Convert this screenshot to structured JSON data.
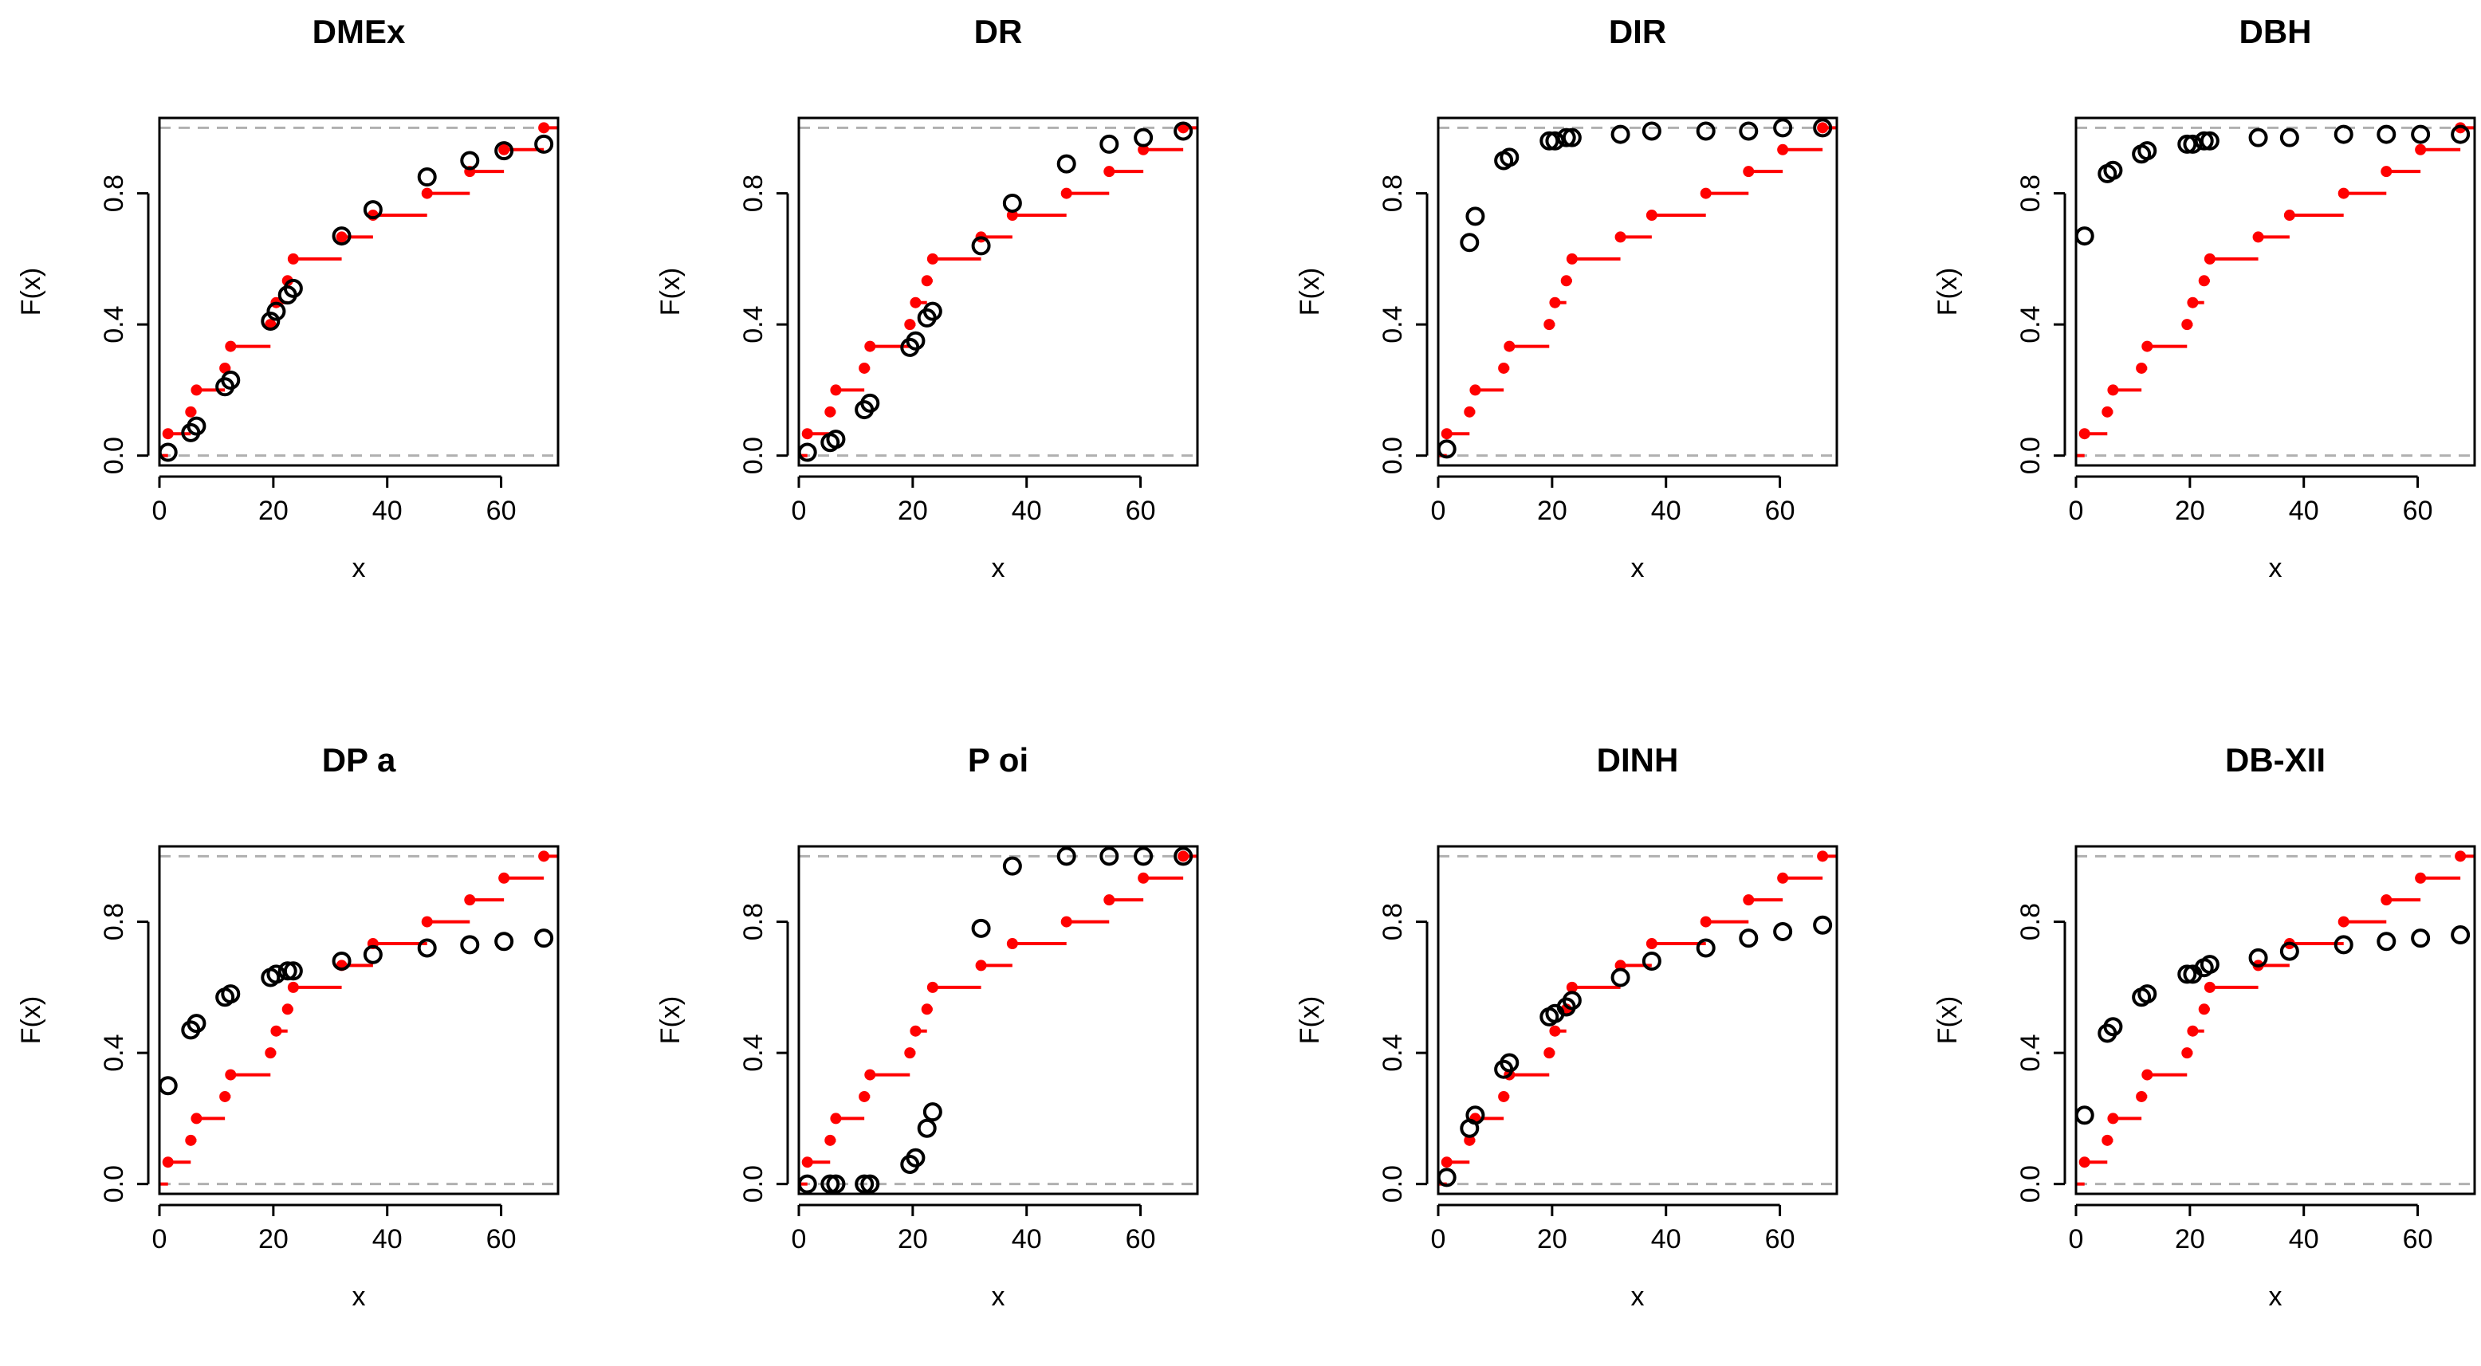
{
  "figure": {
    "panels_title_list": [
      "DMEx",
      "DR",
      "DIR",
      "DBH",
      "DP  a",
      "P oi",
      "DINH",
      "DB-XII"
    ]
  },
  "chart_data": [
    {
      "type": "scatter",
      "title": "DMEx",
      "xlabel": "x",
      "ylabel": "F(x)",
      "xlim": [
        0,
        70
      ],
      "ylim": [
        -0.03,
        1.03
      ],
      "x_ticks": [
        "0",
        "20",
        "40",
        "60"
      ],
      "y_ticks": [
        "0.0",
        "0.4",
        "0.8"
      ],
      "ecdf": {
        "x": [
          1.5,
          5.5,
          6.5,
          11.5,
          12.5,
          19.5,
          20.5,
          22.5,
          23.5,
          32,
          37.5,
          47,
          54.5,
          60.5,
          67.5
        ],
        "y": [
          0.0667,
          0.1333,
          0.2,
          0.2667,
          0.3333,
          0.4,
          0.4667,
          0.5333,
          0.6,
          0.6667,
          0.7333,
          0.8,
          0.8667,
          0.9333,
          1.0
        ],
        "color": "#ff0000"
      },
      "fitted_cdf": {
        "x": [
          1.5,
          5.5,
          6.5,
          11.5,
          12.5,
          19.5,
          20.5,
          22.5,
          23.5,
          32,
          37.5,
          47,
          54.5,
          60.5,
          67.5
        ],
        "y": [
          0.01,
          0.07,
          0.09,
          0.21,
          0.23,
          0.41,
          0.44,
          0.49,
          0.51,
          0.67,
          0.75,
          0.85,
          0.9,
          0.93,
          0.95
        ],
        "color": "#000000"
      }
    },
    {
      "type": "scatter",
      "title": "DR",
      "xlabel": "x",
      "ylabel": "F(x)",
      "xlim": [
        0,
        70
      ],
      "ylim": [
        -0.03,
        1.03
      ],
      "x_ticks": [
        "0",
        "20",
        "40",
        "60"
      ],
      "y_ticks": [
        "0.0",
        "0.4",
        "0.8"
      ],
      "ecdf": {
        "x": [
          1.5,
          5.5,
          6.5,
          11.5,
          12.5,
          19.5,
          20.5,
          22.5,
          23.5,
          32,
          37.5,
          47,
          54.5,
          60.5,
          67.5
        ],
        "y": [
          0.0667,
          0.1333,
          0.2,
          0.2667,
          0.3333,
          0.4,
          0.4667,
          0.5333,
          0.6,
          0.6667,
          0.7333,
          0.8,
          0.8667,
          0.9333,
          1.0
        ],
        "color": "#ff0000"
      },
      "fitted_cdf": {
        "x": [
          1.5,
          5.5,
          6.5,
          11.5,
          12.5,
          19.5,
          20.5,
          22.5,
          23.5,
          32,
          37.5,
          47,
          54.5,
          60.5,
          67.5
        ],
        "y": [
          0.01,
          0.04,
          0.05,
          0.14,
          0.16,
          0.33,
          0.35,
          0.42,
          0.44,
          0.64,
          0.77,
          0.89,
          0.95,
          0.97,
          0.99
        ],
        "color": "#000000"
      }
    },
    {
      "type": "scatter",
      "title": "DIR",
      "xlabel": "x",
      "ylabel": "F(x)",
      "xlim": [
        0,
        70
      ],
      "ylim": [
        -0.03,
        1.03
      ],
      "x_ticks": [
        "0",
        "20",
        "40",
        "60"
      ],
      "y_ticks": [
        "0.0",
        "0.4",
        "0.8"
      ],
      "ecdf": {
        "x": [
          1.5,
          5.5,
          6.5,
          11.5,
          12.5,
          19.5,
          20.5,
          22.5,
          23.5,
          32,
          37.5,
          47,
          54.5,
          60.5,
          67.5
        ],
        "y": [
          0.0667,
          0.1333,
          0.2,
          0.2667,
          0.3333,
          0.4,
          0.4667,
          0.5333,
          0.6,
          0.6667,
          0.7333,
          0.8,
          0.8667,
          0.9333,
          1.0
        ],
        "color": "#ff0000"
      },
      "fitted_cdf": {
        "x": [
          1.5,
          5.5,
          6.5,
          11.5,
          12.5,
          19.5,
          20.5,
          22.5,
          23.5,
          32,
          37.5,
          47,
          54.5,
          60.5,
          67.5
        ],
        "y": [
          0.02,
          0.65,
          0.73,
          0.9,
          0.91,
          0.96,
          0.96,
          0.97,
          0.97,
          0.98,
          0.99,
          0.99,
          0.99,
          1.0,
          1.0
        ],
        "color": "#000000"
      }
    },
    {
      "type": "scatter",
      "title": "DBH",
      "xlabel": "x",
      "ylabel": "F(x)",
      "xlim": [
        0,
        70
      ],
      "ylim": [
        -0.03,
        1.03
      ],
      "x_ticks": [
        "0",
        "20",
        "40",
        "60"
      ],
      "y_ticks": [
        "0.0",
        "0.4",
        "0.8"
      ],
      "ecdf": {
        "x": [
          1.5,
          5.5,
          6.5,
          11.5,
          12.5,
          19.5,
          20.5,
          22.5,
          23.5,
          32,
          37.5,
          47,
          54.5,
          60.5,
          67.5
        ],
        "y": [
          0.0667,
          0.1333,
          0.2,
          0.2667,
          0.3333,
          0.4,
          0.4667,
          0.5333,
          0.6,
          0.6667,
          0.7333,
          0.8,
          0.8667,
          0.9333,
          1.0
        ],
        "color": "#ff0000"
      },
      "fitted_cdf": {
        "x": [
          1.5,
          5.5,
          6.5,
          11.5,
          12.5,
          19.5,
          20.5,
          22.5,
          23.5,
          32,
          37.5,
          47,
          54.5,
          60.5,
          67.5
        ],
        "y": [
          0.67,
          0.86,
          0.87,
          0.92,
          0.93,
          0.95,
          0.95,
          0.96,
          0.96,
          0.97,
          0.97,
          0.98,
          0.98,
          0.98,
          0.98
        ],
        "color": "#000000"
      }
    },
    {
      "type": "scatter",
      "title": "DP  a",
      "xlabel": "x",
      "ylabel": "F(x)",
      "xlim": [
        0,
        70
      ],
      "ylim": [
        -0.03,
        1.03
      ],
      "x_ticks": [
        "0",
        "20",
        "40",
        "60"
      ],
      "y_ticks": [
        "0.0",
        "0.4",
        "0.8"
      ],
      "ecdf": {
        "x": [
          1.5,
          5.5,
          6.5,
          11.5,
          12.5,
          19.5,
          20.5,
          22.5,
          23.5,
          32,
          37.5,
          47,
          54.5,
          60.5,
          67.5
        ],
        "y": [
          0.0667,
          0.1333,
          0.2,
          0.2667,
          0.3333,
          0.4,
          0.4667,
          0.5333,
          0.6,
          0.6667,
          0.7333,
          0.8,
          0.8667,
          0.9333,
          1.0
        ],
        "color": "#ff0000"
      },
      "fitted_cdf": {
        "x": [
          1.5,
          5.5,
          6.5,
          11.5,
          12.5,
          19.5,
          20.5,
          22.5,
          23.5,
          32,
          37.5,
          47,
          54.5,
          60.5,
          67.5
        ],
        "y": [
          0.3,
          0.47,
          0.49,
          0.57,
          0.58,
          0.63,
          0.64,
          0.65,
          0.65,
          0.68,
          0.7,
          0.72,
          0.73,
          0.74,
          0.75
        ],
        "color": "#000000"
      }
    },
    {
      "type": "scatter",
      "title": "P oi",
      "xlabel": "x",
      "ylabel": "F(x)",
      "xlim": [
        0,
        70
      ],
      "ylim": [
        -0.03,
        1.03
      ],
      "x_ticks": [
        "0",
        "20",
        "40",
        "60"
      ],
      "y_ticks": [
        "0.0",
        "0.4",
        "0.8"
      ],
      "ecdf": {
        "x": [
          1.5,
          5.5,
          6.5,
          11.5,
          12.5,
          19.5,
          20.5,
          22.5,
          23.5,
          32,
          37.5,
          47,
          54.5,
          60.5,
          67.5
        ],
        "y": [
          0.0667,
          0.1333,
          0.2,
          0.2667,
          0.3333,
          0.4,
          0.4667,
          0.5333,
          0.6,
          0.6667,
          0.7333,
          0.8,
          0.8667,
          0.9333,
          1.0
        ],
        "color": "#ff0000"
      },
      "fitted_cdf": {
        "x": [
          1.5,
          5.5,
          6.5,
          11.5,
          12.5,
          19.5,
          20.5,
          22.5,
          23.5,
          32,
          37.5,
          47,
          54.5,
          60.5,
          67.5
        ],
        "y": [
          0.0,
          0.0,
          0.0,
          0.0,
          0.0,
          0.06,
          0.08,
          0.17,
          0.22,
          0.78,
          0.97,
          1.0,
          1.0,
          1.0,
          1.0
        ],
        "color": "#000000"
      }
    },
    {
      "type": "scatter",
      "title": "DINH",
      "xlabel": "x",
      "ylabel": "F(x)",
      "xlim": [
        0,
        70
      ],
      "ylim": [
        -0.03,
        1.03
      ],
      "x_ticks": [
        "0",
        "20",
        "40",
        "60"
      ],
      "y_ticks": [
        "0.0",
        "0.4",
        "0.8"
      ],
      "ecdf": {
        "x": [
          1.5,
          5.5,
          6.5,
          11.5,
          12.5,
          19.5,
          20.5,
          22.5,
          23.5,
          32,
          37.5,
          47,
          54.5,
          60.5,
          67.5
        ],
        "y": [
          0.0667,
          0.1333,
          0.2,
          0.2667,
          0.3333,
          0.4,
          0.4667,
          0.5333,
          0.6,
          0.6667,
          0.7333,
          0.8,
          0.8667,
          0.9333,
          1.0
        ],
        "color": "#ff0000"
      },
      "fitted_cdf": {
        "x": [
          1.5,
          5.5,
          6.5,
          11.5,
          12.5,
          19.5,
          20.5,
          22.5,
          23.5,
          32,
          37.5,
          47,
          54.5,
          60.5,
          67.5
        ],
        "y": [
          0.02,
          0.17,
          0.21,
          0.35,
          0.37,
          0.51,
          0.52,
          0.54,
          0.56,
          0.63,
          0.68,
          0.72,
          0.75,
          0.77,
          0.79
        ],
        "color": "#000000"
      }
    },
    {
      "type": "scatter",
      "title": "DB-XII",
      "xlabel": "x",
      "ylabel": "F(x)",
      "xlim": [
        0,
        70
      ],
      "ylim": [
        -0.03,
        1.03
      ],
      "x_ticks": [
        "0",
        "20",
        "40",
        "60"
      ],
      "y_ticks": [
        "0.0",
        "0.4",
        "0.8"
      ],
      "ecdf": {
        "x": [
          1.5,
          5.5,
          6.5,
          11.5,
          12.5,
          19.5,
          20.5,
          22.5,
          23.5,
          32,
          37.5,
          47,
          54.5,
          60.5,
          67.5
        ],
        "y": [
          0.0667,
          0.1333,
          0.2,
          0.2667,
          0.3333,
          0.4,
          0.4667,
          0.5333,
          0.6,
          0.6667,
          0.7333,
          0.8,
          0.8667,
          0.9333,
          1.0
        ],
        "color": "#ff0000"
      },
      "fitted_cdf": {
        "x": [
          1.5,
          5.5,
          6.5,
          11.5,
          12.5,
          19.5,
          20.5,
          22.5,
          23.5,
          32,
          37.5,
          47,
          54.5,
          60.5,
          67.5
        ],
        "y": [
          0.21,
          0.46,
          0.48,
          0.57,
          0.58,
          0.64,
          0.64,
          0.66,
          0.67,
          0.69,
          0.71,
          0.73,
          0.74,
          0.75,
          0.76
        ],
        "color": "#000000"
      }
    }
  ]
}
